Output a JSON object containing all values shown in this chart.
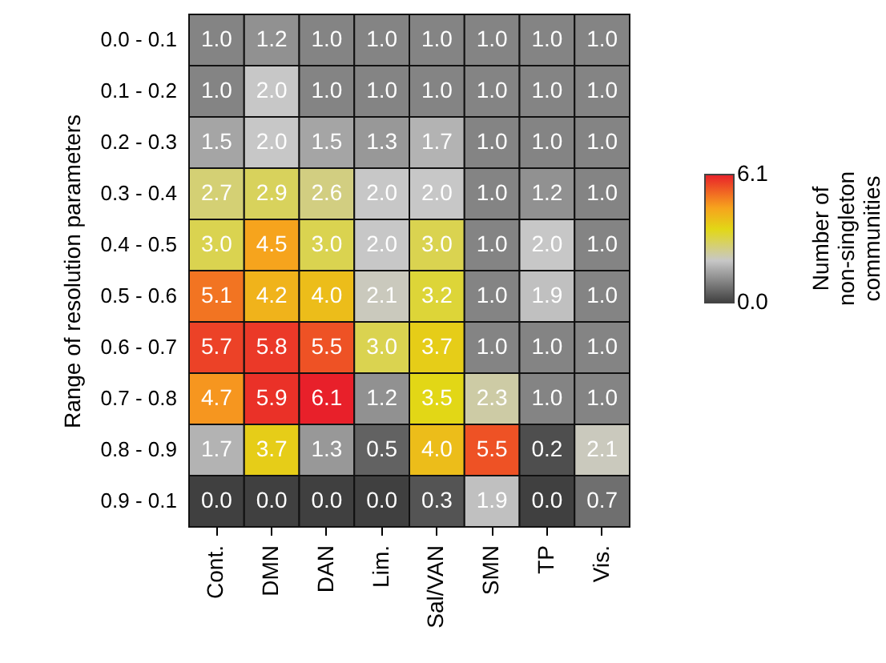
{
  "chart_data": {
    "type": "heatmap",
    "ylabel": "Range of resolution parameters",
    "clabel": "Number of non-singleton communities",
    "categories": [
      "Cont.",
      "DMN",
      "DAN",
      "Lim.",
      "Sal/VAN",
      "SMN",
      "TP",
      "Vis."
    ],
    "y_categories": [
      "0.0 - 0.1",
      "0.1 - 0.2",
      "0.2 - 0.3",
      "0.3 - 0.4",
      "0.4 - 0.5",
      "0.5 - 0.6",
      "0.6 - 0.7",
      "0.7 - 0.8",
      "0.8 - 0.9",
      "0.9 - 0.1"
    ],
    "cells": [
      [
        1.0,
        1.2,
        1.0,
        1.0,
        1.0,
        1.0,
        1.0,
        1.0
      ],
      [
        1.0,
        2.0,
        1.0,
        1.0,
        1.0,
        1.0,
        1.0,
        1.0
      ],
      [
        1.5,
        2.0,
        1.5,
        1.3,
        1.7,
        1.0,
        1.0,
        1.0
      ],
      [
        2.7,
        2.9,
        2.6,
        2.0,
        2.0,
        1.0,
        1.2,
        1.0
      ],
      [
        3.0,
        4.5,
        3.0,
        2.0,
        3.0,
        1.0,
        2.0,
        1.0
      ],
      [
        5.1,
        4.2,
        4.0,
        2.1,
        3.2,
        1.0,
        1.9,
        1.0
      ],
      [
        5.7,
        5.8,
        5.5,
        3.0,
        3.7,
        1.0,
        1.0,
        1.0
      ],
      [
        4.7,
        5.9,
        6.1,
        1.2,
        3.5,
        2.3,
        1.0,
        1.0
      ],
      [
        1.7,
        3.7,
        1.3,
        0.5,
        4.0,
        5.5,
        0.2,
        2.1
      ],
      [
        0.0,
        0.0,
        0.0,
        0.0,
        0.3,
        1.9,
        0.0,
        0.7
      ]
    ],
    "cell_labels": [
      [
        "1.0",
        "1.2",
        "1.0",
        "1.0",
        "1.0",
        "1.0",
        "1.0",
        "1.0"
      ],
      [
        "1.0",
        "2.0",
        "1.0",
        "1.0",
        "1.0",
        "1.0",
        "1.0",
        "1.0"
      ],
      [
        "1.5",
        "2.0",
        "1.5",
        "1.3",
        "1.7",
        "1.0",
        "1.0",
        "1.0"
      ],
      [
        "2.7",
        "2.9",
        "2.6",
        "2.0",
        "2.0",
        "1.0",
        "1.2",
        "1.0"
      ],
      [
        "3.0",
        "4.5",
        "3.0",
        "2.0",
        "3.0",
        "1.0",
        "2.0",
        "1.0"
      ],
      [
        "5.1",
        "4.2",
        "4.0",
        "2.1",
        "3.2",
        "1.0",
        "1.9",
        "1.0"
      ],
      [
        "5.7",
        "5.8",
        "5.5",
        "3.0",
        "3.7",
        "1.0",
        "1.0",
        "1.0"
      ],
      [
        "4.7",
        "5.9",
        "6.1",
        "1.2",
        "3.5",
        "2.3",
        "1.0",
        "1.0"
      ],
      [
        "1.7",
        "3.7",
        "1.3",
        "0.5",
        "4.0",
        "5.5",
        "0.2",
        "2.1"
      ],
      [
        "0.0",
        "0.0",
        "0.0",
        "0.0",
        "0.3",
        "1.9",
        "0.0",
        "0.7"
      ]
    ],
    "clim": [
      0.0,
      6.1
    ],
    "cticks": [
      {
        "value": 0.0,
        "label": "0.0"
      },
      {
        "value": 6.1,
        "label": "6.1"
      }
    ],
    "data_labels": true
  }
}
